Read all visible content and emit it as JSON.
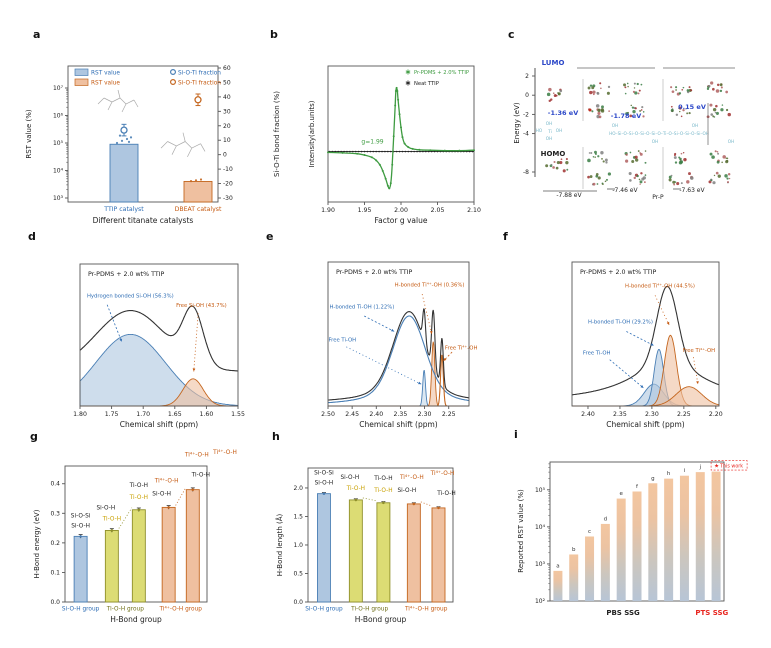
{
  "figure": {
    "panel_letters": [
      "a",
      "b",
      "c",
      "d",
      "e",
      "f",
      "g",
      "h",
      "i"
    ]
  },
  "colors": {
    "blue": "#4a7fb5",
    "blue_fill": "#aec6e0",
    "blue_text": "#2e6db4",
    "orange": "#c4661f",
    "orange_fill": "#efc0a0",
    "orange_text": "#c55a11",
    "olive": "#8f8f2a",
    "olive_fill": "#dcdc74",
    "olive_text": "#c8a000",
    "olive_dark": "#70701a",
    "green": "#3e9b41",
    "red": "#e8251f",
    "black": "#222222",
    "gray": "#999999",
    "teal": "#78b7c9",
    "lightblue_fill": "#c5d8ea",
    "axis": "#555555",
    "lumo_blue": "#2b47c8"
  },
  "chart_data": [
    {
      "panel": "a",
      "type": "dual_axis_bar",
      "xlabel": "Different titanate catalysts",
      "ylabel_left": "RST value (%)",
      "ylabel_right": "Si-O-Ti bond fraction (%)",
      "yticks_left": [
        "10³",
        "10⁴",
        "10⁵",
        "10⁶",
        "10⁷"
      ],
      "yticks_right": [
        60,
        50,
        40,
        30,
        20,
        10,
        0,
        -10,
        -20,
        -30
      ],
      "categories": [
        {
          "label": "TTIP catalyst",
          "color": "blue"
        },
        {
          "label": "DBEAT catalyst",
          "color": "orange"
        }
      ],
      "rst_values": [
        90000,
        4000
      ],
      "rst_dots": [
        [
          100000,
          120000,
          140000,
          160000,
          185000,
          110000
        ],
        [
          4100,
          4400,
          4700
        ]
      ],
      "si_o_ti_fractions": [
        {
          "value": 17,
          "err": 4
        },
        {
          "value": 38,
          "err": 4
        }
      ],
      "legend_bars": [
        {
          "label": "RST value",
          "color": "blue"
        },
        {
          "label": "RST value",
          "color": "orange"
        }
      ],
      "legend_markers": [
        {
          "label": "Si-O-Ti fraction",
          "color": "blue"
        },
        {
          "label": "Si-O-Ti fraction",
          "color": "orange"
        }
      ]
    },
    {
      "panel": "b",
      "type": "line",
      "xlabel": "Factor g value",
      "ylabel": "Intensity(arb.units)",
      "xlim": [
        1.9,
        2.1
      ],
      "ylim": [
        -1.15,
        1.95
      ],
      "xticks": [
        "1.90",
        "1.95",
        "2.00",
        "2.05",
        "2.10"
      ],
      "annotation": {
        "text": "g=1.99",
        "x": 1.961,
        "y": 0.18
      },
      "series": [
        {
          "name": "Pr-PDMS + 2.0% TTIP",
          "color": "green",
          "points": [
            [
              1.9,
              -0.02
            ],
            [
              1.92,
              -0.03
            ],
            [
              1.94,
              -0.05
            ],
            [
              1.95,
              -0.08
            ],
            [
              1.96,
              -0.13
            ],
            [
              1.966,
              -0.2
            ],
            [
              1.971,
              -0.3
            ],
            [
              1.975,
              -0.44
            ],
            [
              1.979,
              -0.62
            ],
            [
              1.982,
              -0.78
            ],
            [
              1.984,
              -0.84
            ],
            [
              1.986,
              -0.72
            ],
            [
              1.988,
              -0.3
            ],
            [
              1.99,
              0.35
            ],
            [
              1.992,
              1.05
            ],
            [
              1.993,
              1.38
            ],
            [
              1.994,
              1.45
            ],
            [
              1.995,
              1.38
            ],
            [
              1.996,
              1.18
            ],
            [
              1.998,
              0.85
            ],
            [
              2.0,
              0.55
            ],
            [
              2.002,
              0.33
            ],
            [
              2.005,
              0.18
            ],
            [
              2.01,
              0.1
            ],
            [
              2.016,
              0.06
            ],
            [
              2.025,
              0.04
            ],
            [
              2.04,
              0.03
            ],
            [
              2.06,
              0.02
            ],
            [
              2.08,
              0.02
            ],
            [
              2.1,
              0.03
            ]
          ]
        },
        {
          "name": "Neat TTIP",
          "color": "black",
          "flat_y": 0.0
        }
      ]
    },
    {
      "panel": "c",
      "type": "energy_diagram",
      "ylabel": "Energy (eV)",
      "yticks": [
        2,
        0,
        -2,
        -4,
        -8
      ],
      "lumo_label": "LUMO",
      "homo_label": "HOMO",
      "lumo_levels": [
        {
          "label": "-1.36 eV",
          "x": 68,
          "y": 90
        },
        {
          "label": "-1.78 eV",
          "x": 131,
          "y": 93
        },
        {
          "label": "0.15 eV",
          "x": 197,
          "y": 84
        }
      ],
      "homo_levels": [
        {
          "label": "-7.88 eV",
          "x": 74,
          "y": 172
        },
        {
          "label": "-7.46 eV",
          "x": 130,
          "y": 167
        },
        {
          "label": "-7.63 eV",
          "x": 197,
          "y": 167
        }
      ],
      "bottom_label": "Pr-P",
      "chain_formula": "HO–Si–O–Si–O–Si–O–Si–O–Ti–O–Si–O–Si–O–Si–OH",
      "chain_oh": "OH",
      "chain_ho": "HO",
      "chain_ti": "Ti"
    },
    {
      "panel": "d",
      "type": "nmr",
      "title": "Pr-PDMS + 2.0 wt% TTIP",
      "xlabel": "Chemical shift (ppm)",
      "xlim": [
        1.8,
        1.55
      ],
      "xticks": [
        "1.80",
        "1.75",
        "1.70",
        "1.65",
        "1.60",
        "1.55"
      ],
      "ylim_max": 1.15,
      "peaks": [
        {
          "name": "Hydrogen bonded Si-OH (56.3%)",
          "color": "blue",
          "center": 1.72,
          "sigma": 0.055,
          "amp": 0.58,
          "fill": true,
          "label": {
            "x": 1.789,
            "y": 0.88,
            "anchor": "start"
          },
          "arrow": [
            1.757,
            0.82,
            1.734,
            0.52
          ],
          "dash": "2,2"
        },
        {
          "name": "Free Si-OH (43.7%)",
          "color": "orange",
          "center": 1.621,
          "sigma": 0.016,
          "amp": 0.22,
          "fill": true,
          "label": {
            "x": 1.648,
            "y": 0.8,
            "anchor": "start"
          },
          "arrow": [
            1.613,
            0.75,
            1.62,
            0.28
          ],
          "dash": "1,2.4"
        }
      ],
      "envelope": {
        "weights": [
          0.85,
          1.95
        ],
        "offset": 0.28
      }
    },
    {
      "panel": "e",
      "type": "nmr",
      "title": "Pr-PDMS + 2.0 wt% TTIP",
      "xlabel": "Chemical shift (ppm)",
      "xlim": [
        2.5,
        2.208
      ],
      "xticks": [
        "2.50",
        "2.45",
        "2.40",
        "2.35",
        "2.30",
        "2.25"
      ],
      "ylim_max": 1.12,
      "peaks": [
        {
          "name": "H-bonded Ti-OH (1.22%)",
          "color": "blue",
          "center": 2.332,
          "sigma": 0.032,
          "amp": 0.7,
          "lf": 0.25,
          "gamma": 0.07,
          "fill": false,
          "label": {
            "x": 2.497,
            "y": 0.76,
            "anchor": "start"
          },
          "arrow": [
            2.425,
            0.7,
            2.363,
            0.58
          ],
          "dash": "2,2"
        },
        {
          "name": "Free Ti-OH",
          "color": "lightblue",
          "center": 2.301,
          "sigma": 0.0028,
          "amp": 0.28,
          "fill": true,
          "label_color": "blue",
          "label": {
            "x": 2.499,
            "y": 0.5,
            "anchor": "start"
          },
          "arrow": [
            2.462,
            0.46,
            2.307,
            0.17
          ],
          "dash": "1,2.6"
        },
        {
          "name": "H-bonded Ti⁴⁺-OH (0.36%)",
          "color": "orange",
          "center": 2.282,
          "sigma": 0.0032,
          "amp": 0.5,
          "fill": true,
          "label": {
            "x": 2.362,
            "y": 0.93,
            "anchor": "start"
          },
          "arrow": [
            2.305,
            0.87,
            2.285,
            0.56
          ],
          "dash": "1,2.6"
        },
        {
          "name": "Free Ti⁴⁺-OH",
          "color": "orange",
          "center": 2.264,
          "sigma": 0.0028,
          "amp": 0.4,
          "fill": false,
          "label": {
            "x": 2.258,
            "y": 0.44,
            "anchor": "start"
          },
          "arrow": [
            2.243,
            0.42,
            2.261,
            0.35
          ],
          "dash": "2,2"
        }
      ],
      "envelope": {
        "weights": [
          1.02,
          0.9,
          0.9,
          0.9
        ],
        "offset": 0.02
      }
    },
    {
      "panel": "f",
      "type": "nmr",
      "title": "Pr-PDMS + 2.0 wt% TTIP",
      "xlabel": "Chemical shift (ppm)",
      "xlim": [
        2.425,
        2.195
      ],
      "xticks": [
        "2.40",
        "2.35",
        "2.30",
        "2.25",
        "2.20"
      ],
      "ylim_max": 1.12,
      "peaks": [
        {
          "name": "Free Ti-OH",
          "color": "blue",
          "center": 2.297,
          "sigma": 0.015,
          "amp": 0.17,
          "fill": true,
          "label": {
            "x": 2.408,
            "y": 0.4,
            "anchor": "start"
          },
          "arrow": [
            2.366,
            0.36,
            2.313,
            0.14
          ],
          "dash": "2,2"
        },
        {
          "name": "H-bonded Ti-OH (29.2%)",
          "color": "blue",
          "center": 2.289,
          "sigma": 0.0075,
          "amp": 0.44,
          "fill": true,
          "label": {
            "x": 2.4,
            "y": 0.64,
            "anchor": "start"
          },
          "arrow": [
            2.34,
            0.58,
            2.297,
            0.47
          ],
          "dash": "2,2"
        },
        {
          "name": "H-bonded Ti⁴⁺-OH (44.5%)",
          "color": "orange",
          "center": 2.271,
          "sigma": 0.0095,
          "amp": 0.55,
          "fill": true,
          "label": {
            "x": 2.342,
            "y": 0.92,
            "anchor": "start"
          },
          "arrow": [
            2.295,
            0.86,
            2.273,
            0.63
          ],
          "dash": "1,2.6"
        },
        {
          "name": "Free Ti⁴⁺-OH",
          "color": "orange",
          "center": 2.242,
          "sigma": 0.02,
          "amp": 0.15,
          "fill": true,
          "label": {
            "x": 2.252,
            "y": 0.42,
            "anchor": "start"
          },
          "arrow": [
            2.235,
            0.38,
            2.228,
            0.17
          ],
          "dash": "1,2.6"
        }
      ],
      "envelope_peak": {
        "center": 2.276,
        "sigma": 0.016,
        "amp": 0.9,
        "lf": 0.35,
        "gamma": 0.07,
        "offset": 0.03
      }
    },
    {
      "panel": "g",
      "type": "grouped_bar",
      "ylabel": "H-Bond energy (eV)",
      "xlabel": "H-Bond group",
      "ylim": [
        0,
        0.46
      ],
      "yticks": [
        "0.0",
        "0.1",
        "0.2",
        "0.3",
        "0.4"
      ],
      "ytick_vals": [
        0,
        0.1,
        0.2,
        0.3,
        0.4
      ],
      "group_labels": [
        {
          "text": "Si-O-H group",
          "color": "blue"
        },
        {
          "text": "Ti-O-H group",
          "color": "olive"
        },
        {
          "text": "Ti⁴⁺-O-H group",
          "color": "orange"
        }
      ],
      "bars": [
        {
          "value": 0.222,
          "err": 0.006,
          "color": "blue",
          "labels": [
            {
              "text": "Si-O-Si",
              "color": "black"
            },
            {
              "text": "Si-O-H",
              "color": "black"
            }
          ]
        },
        {
          "value": 0.242,
          "err": 0.006,
          "color": "olive",
          "labels": [
            {
              "text": "Si-O-H",
              "color": "black"
            },
            {
              "text": "Ti-O-H",
              "color": "olive_text"
            }
          ]
        },
        {
          "value": 0.312,
          "err": 0.006,
          "color": "olive",
          "labels": [
            {
              "text": "Ti-O-H",
              "color": "black"
            },
            {
              "text": "Ti-O-H",
              "color": "olive_text"
            }
          ]
        },
        {
          "value": 0.32,
          "err": 0.006,
          "color": "orange",
          "labels": [
            {
              "text": "Ti⁴⁺-O-H",
              "color": "orange_text"
            },
            {
              "text": "Si-O-H",
              "color": "black"
            }
          ]
        },
        {
          "value": 0.38,
          "err": 0.006,
          "color": "orange",
          "labels": [
            {
              "text": "Ti⁴⁺-O-H",
              "color": "orange_text"
            },
            {
              "text": "Ti-O-H",
              "color": "black"
            }
          ]
        }
      ],
      "floating_label": {
        "text": "Ti⁴⁺-O-H",
        "color": "orange_text"
      }
    },
    {
      "panel": "h",
      "type": "grouped_bar",
      "ylabel": "H-Bond length (Å)",
      "xlabel": "H-Bond group",
      "ylim": [
        0,
        2.35
      ],
      "yticks": [
        "0.0",
        "0.5",
        "1.0",
        "1.5",
        "2.0"
      ],
      "ytick_vals": [
        0,
        0.5,
        1.0,
        1.5,
        2.0
      ],
      "group_labels": [
        {
          "text": "Si-O-H group",
          "color": "blue"
        },
        {
          "text": "Ti-O-H group",
          "color": "olive"
        },
        {
          "text": "Ti⁴⁺-O-H group",
          "color": "orange"
        }
      ],
      "bars": [
        {
          "value": 1.9,
          "err": 0.02,
          "color": "blue",
          "labels": [
            {
              "text": "Si-O-Si",
              "color": "black"
            },
            {
              "text": "Si-O-H",
              "color": "black"
            }
          ]
        },
        {
          "value": 1.79,
          "err": 0.02,
          "color": "olive",
          "labels": [
            {
              "text": "Si-O-H",
              "color": "black"
            },
            {
              "text": "Ti-O-H",
              "color": "olive_text"
            }
          ]
        },
        {
          "value": 1.74,
          "err": 0.02,
          "color": "olive",
          "labels": [
            {
              "text": "Ti-O-H",
              "color": "black"
            },
            {
              "text": "Ti-O-H",
              "color": "olive_text"
            }
          ]
        },
        {
          "value": 1.72,
          "err": 0.02,
          "color": "orange",
          "labels": [
            {
              "text": "Ti⁴⁺-O-H",
              "color": "orange_text"
            },
            {
              "text": "Si-O-H",
              "color": "black"
            }
          ]
        },
        {
          "value": 1.65,
          "err": 0.02,
          "color": "orange",
          "labels": [
            {
              "text": "Ti⁴⁺-O-H",
              "color": "orange_text"
            },
            {
              "text": "Ti-O-H",
              "color": "black"
            }
          ]
        }
      ]
    },
    {
      "panel": "i",
      "type": "log_bar",
      "ylabel": "Reported RST value (%)",
      "yticks": [
        "10²",
        "10³",
        "10⁴",
        "10⁵"
      ],
      "ytick_exps": [
        2,
        3,
        4,
        5
      ],
      "ylim_exp": [
        2,
        5.75
      ],
      "bars": [
        {
          "label": "a",
          "value": 650
        },
        {
          "label": "b",
          "value": 1800
        },
        {
          "label": "c",
          "value": 5500
        },
        {
          "label": "d",
          "value": 12000
        },
        {
          "label": "e",
          "value": 58000
        },
        {
          "label": "f",
          "value": 90000
        },
        {
          "label": "g",
          "value": 150000
        },
        {
          "label": "h",
          "value": 200000
        },
        {
          "label": "i",
          "value": 240000
        },
        {
          "label": "j",
          "value": 300000
        },
        {
          "label": "This work",
          "value": 310000,
          "highlight": true,
          "star": "★"
        }
      ],
      "group_labels": [
        {
          "text": "PBS SSG",
          "color": "black",
          "u": 0.42
        },
        {
          "text": "PTS SSG",
          "color": "red",
          "u": 0.93
        }
      ]
    }
  ]
}
